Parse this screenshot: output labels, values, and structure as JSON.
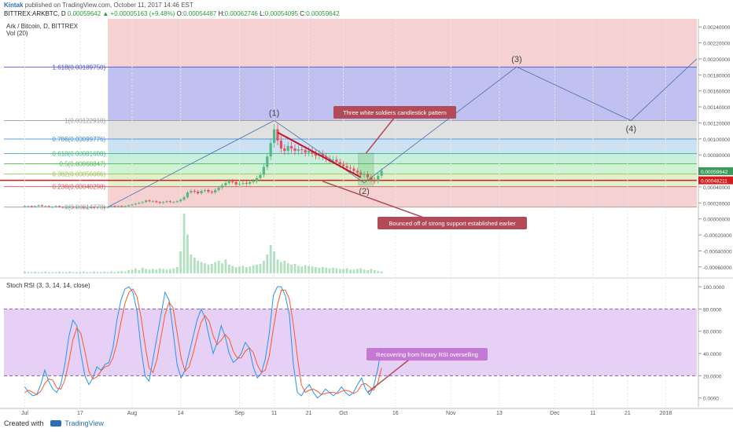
{
  "header": {
    "author": "Kintak",
    "published": "published on TradingView.com, October 11, 2017 14:46 EST",
    "symbol": "BITTREX:ARKBTC, D",
    "change": "0.00059642 ▲ +0.00005163 (+9.48%)",
    "o_label": "O:",
    "o": "0.00054487",
    "h_label": "H:",
    "h": "0.00062746",
    "l_label": "L:",
    "l": "0.00054095",
    "c_label": "C:",
    "c": "0.00059642"
  },
  "footer": {
    "created": "Created with",
    "brand": "TradingView"
  },
  "colors": {
    "up": "#53b987",
    "down": "#eb4d5c",
    "rsi_k": "#2196f3",
    "rsi_d": "#ff5722",
    "volume": "#9fd9b0",
    "support": "#d41c1c",
    "callout": "#b24a58",
    "wave": "#4a6fb5"
  },
  "chart_data": [
    {
      "type": "candlestick",
      "title": "Ark / Bitcoin, D, BITTREX",
      "ylim": [
        -0.0007,
        0.0025
      ],
      "yticks": [
        "0.00240000",
        "0.00220000",
        "0.00200000",
        "0.00180000",
        "0.00160000",
        "0.00140000",
        "0.00120000",
        "0.00100000",
        "0.00080000",
        "0.00060000",
        "0.00040000",
        "0.00020000",
        "0.00000000",
        "-0.00020000",
        "-0.00040000",
        "-0.00060000"
      ],
      "ytick_values": [
        0.0024,
        0.0022,
        0.002,
        0.0018,
        0.0016,
        0.0014,
        0.0012,
        0.001,
        0.0008,
        0.0006,
        0.0004,
        0.0002,
        0,
        -0.0002,
        -0.0004,
        -0.0006
      ],
      "xticks": [
        "Jul",
        "17",
        "Aug",
        "14",
        "Sep",
        "11",
        "21",
        "Oct",
        "16",
        "Nov",
        "13",
        "Dec",
        "11",
        "21",
        "2018"
      ],
      "xtick_days": [
        0,
        16,
        31,
        45,
        62,
        72,
        82,
        92,
        107,
        123,
        137,
        153,
        164,
        174,
        185
      ],
      "x_range_days": [
        -6,
        194
      ],
      "last_price_label": "0.00059642",
      "last_price": 0.00059642,
      "support_label": "0.00048211",
      "support": 0.00048211,
      "closes": [
        0.00016,
        0.00016,
        0.00015,
        0.00016,
        0.00017,
        0.00016,
        0.00016,
        0.00015,
        0.00015,
        0.00016,
        0.00015,
        0.00014,
        0.00015,
        0.00015,
        0.00014,
        0.00015,
        0.00015,
        0.00014,
        0.00014,
        0.00015,
        0.00014,
        0.00015,
        0.00015,
        0.00014,
        0.00015,
        0.00016,
        0.00015,
        0.00016,
        0.00015,
        0.00016,
        0.00017,
        0.00018,
        0.00019,
        0.0002,
        0.00021,
        0.00023,
        0.00022,
        0.00022,
        0.00021,
        0.0002,
        0.00021,
        0.00022,
        0.00021,
        0.00021,
        0.00022,
        0.00024,
        0.00027,
        0.00033,
        0.00035,
        0.00034,
        0.00032,
        0.00035,
        0.00036,
        0.00034,
        0.00033,
        0.00036,
        0.00039,
        0.00042,
        0.00045,
        0.00047,
        0.00046,
        0.00043,
        0.00044,
        0.00045,
        0.00044,
        0.00046,
        0.00047,
        0.00051,
        0.00055,
        0.00065,
        0.00078,
        0.00095,
        0.00112,
        0.00098,
        0.00088,
        0.00085,
        0.00091,
        0.00088,
        0.00085,
        0.00087,
        0.00086,
        0.00083,
        0.00085,
        0.00082,
        0.00079,
        0.00081,
        0.00078,
        0.00075,
        0.00073,
        0.00074,
        0.00071,
        0.00068,
        0.00066,
        0.00064,
        0.00063,
        0.0006,
        0.00058,
        0.00055,
        0.00056,
        0.00052,
        0.00049,
        0.00047,
        0.00054,
        0.0006
      ],
      "volumes": [
        0.03,
        0.02,
        0.02,
        0.03,
        0.02,
        0.02,
        0.03,
        0.02,
        0.02,
        0.02,
        0.03,
        0.02,
        0.02,
        0.03,
        0.02,
        0.02,
        0.02,
        0.03,
        0.02,
        0.02,
        0.03,
        0.02,
        0.02,
        0.03,
        0.02,
        0.03,
        0.02,
        0.03,
        0.04,
        0.03,
        0.05,
        0.06,
        0.08,
        0.05,
        0.09,
        0.07,
        0.06,
        0.07,
        0.06,
        0.08,
        0.07,
        0.06,
        0.07,
        0.08,
        0.1,
        0.35,
        0.95,
        0.62,
        0.3,
        0.25,
        0.2,
        0.18,
        0.16,
        0.14,
        0.15,
        0.18,
        0.2,
        0.16,
        0.22,
        0.14,
        0.12,
        0.1,
        0.11,
        0.12,
        0.1,
        0.11,
        0.13,
        0.14,
        0.15,
        0.2,
        0.3,
        0.45,
        0.35,
        0.22,
        0.18,
        0.2,
        0.16,
        0.14,
        0.15,
        0.12,
        0.11,
        0.13,
        0.12,
        0.11,
        0.1,
        0.09,
        0.1,
        0.09,
        0.08,
        0.09,
        0.08,
        0.07,
        0.07,
        0.08,
        0.06,
        0.06,
        0.07,
        0.08,
        0.06,
        0.05,
        0.07,
        0.05,
        0.04,
        0.03
      ],
      "volume_label": "Vol (20)",
      "fib_levels": [
        {
          "label": "1.618(0.00189750)",
          "value": 0.0018975,
          "fill": "#b9b9f0",
          "line": "#4c4ccd"
        },
        {
          "label": "1(0.00122918)",
          "value": 0.00122918,
          "fill": "#dedede",
          "line": "#9a9a9a"
        },
        {
          "label": "0.786(0.00099776)",
          "value": 0.00099776,
          "fill": "#c7dff2",
          "line": "#3f8ed6"
        },
        {
          "label": "0.618(0.00081608)",
          "value": 0.00081608,
          "fill": "#c2ecd8",
          "line": "#34b87a"
        },
        {
          "label": "0.5(0.00068847)",
          "value": 0.00068847,
          "fill": "#caf0cf",
          "line": "#4cb84c"
        },
        {
          "label": "0.382(0.00056086)",
          "value": 0.00056086,
          "fill": "#dcf0c4",
          "line": "#9ac24a"
        },
        {
          "label": "0.236(0.00040298)",
          "value": 0.00040298,
          "fill": "#f4cccc",
          "line": "#d45050"
        },
        {
          "label": "0(0.00014778)",
          "value": 0.00014778,
          "fill": "#f4cccc",
          "line": "#9a9a9a"
        }
      ],
      "fib_range_days": [
        24,
        194
      ],
      "top_zone_value": 0.0025,
      "bottom_zone_value": 0.00014778,
      "waves": [
        {
          "label": "(1)",
          "day": 72,
          "value": 0.00122918
        },
        {
          "label": "(2)",
          "day": 98,
          "value": 0.00045
        },
        {
          "label": "(3)",
          "day": 142,
          "value": 0.0019
        },
        {
          "label": "(4)",
          "day": 175,
          "value": 0.00122918
        }
      ],
      "wave_path": [
        [
          24,
          0.00014778
        ],
        [
          72,
          0.00122918
        ],
        [
          98,
          0.00045
        ],
        [
          142,
          0.0019
        ],
        [
          175,
          0.00122918
        ],
        [
          194,
          0.002
        ]
      ],
      "trendline": [
        [
          73,
          0.00108
        ],
        [
          97,
          0.00052
        ]
      ],
      "annotations": {
        "white_soldiers": "Three white soldiers candlestick pattern",
        "support": "Bounced off of strong support established earlier"
      }
    },
    {
      "type": "line",
      "title": "Stoch RSI (3, 3, 14, 14, close)",
      "ylim": [
        -8,
        105
      ],
      "yticks": [
        "100.0000",
        "80.0000",
        "60.0000",
        "40.0000",
        "20.0000",
        "0.0000"
      ],
      "ytick_values": [
        100,
        80,
        60,
        40,
        20,
        0
      ],
      "band": [
        20,
        80
      ],
      "series": [
        {
          "values": [
            10,
            5,
            2,
            3,
            12,
            25,
            15,
            8,
            5,
            12,
            30,
            55,
            70,
            65,
            40,
            20,
            12,
            18,
            28,
            25,
            30,
            32,
            45,
            70,
            88,
            98,
            100,
            95,
            78,
            45,
            20,
            15,
            35,
            55,
            75,
            95,
            88,
            60,
            30,
            18,
            25,
            40,
            55,
            70,
            80,
            72,
            55,
            40,
            50,
            65,
            55,
            40,
            32,
            35,
            40,
            50,
            45,
            28,
            18,
            22,
            35,
            58,
            92,
            100,
            100,
            92,
            75,
            30,
            5,
            2,
            8,
            12,
            5,
            0,
            3,
            8,
            5,
            2,
            5,
            10,
            5,
            2,
            5,
            12,
            18,
            8,
            3,
            10,
            25,
            45
          ]
        },
        {
          "values": [
            5,
            7,
            5,
            3,
            6,
            13,
            17,
            16,
            9,
            8,
            16,
            32,
            52,
            63,
            58,
            42,
            24,
            17,
            19,
            24,
            28,
            29,
            36,
            49,
            68,
            85,
            95,
            98,
            91,
            73,
            48,
            27,
            23,
            35,
            55,
            75,
            86,
            81,
            59,
            36,
            24,
            28,
            40,
            55,
            68,
            74,
            69,
            56,
            48,
            52,
            57,
            53,
            42,
            36,
            36,
            42,
            45,
            41,
            30,
            23,
            25,
            38,
            62,
            83,
            97,
            97,
            89,
            66,
            37,
            12,
            5,
            7,
            8,
            6,
            3,
            4,
            5,
            5,
            4,
            6,
            7,
            6,
            4,
            6,
            12,
            13,
            10,
            7,
            13,
            27
          ]
        }
      ],
      "series_colors": [
        "#2196f3",
        "#ff5722"
      ],
      "annotation": "Recovering from heavy RSI overselling"
    }
  ]
}
